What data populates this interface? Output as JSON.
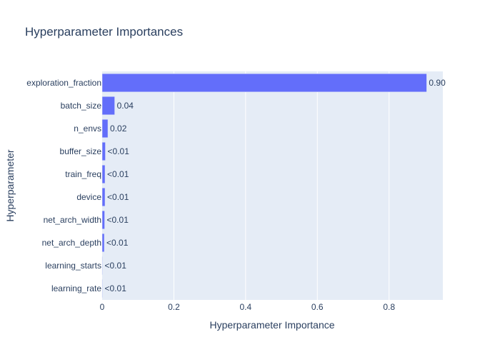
{
  "chart_data": {
    "type": "bar",
    "orientation": "horizontal",
    "title": "Hyperparameter Importances",
    "xlabel": "Hyperparameter Importance",
    "ylabel": "Hyperparameter",
    "xlim": [
      0,
      0.95
    ],
    "xticks": [
      0,
      0.2,
      0.4,
      0.6,
      0.8
    ],
    "xtick_labels": [
      "0",
      "0.2",
      "0.4",
      "0.6",
      "0.8"
    ],
    "grid": true,
    "categories": [
      "exploration_fraction",
      "batch_size",
      "n_envs",
      "buffer_size",
      "train_freq",
      "device",
      "net_arch_width",
      "net_arch_depth",
      "learning_starts",
      "learning_rate"
    ],
    "values": [
      0.905,
      0.035,
      0.016,
      0.009,
      0.008,
      0.008,
      0.007,
      0.006,
      0.001,
      0.001
    ],
    "value_labels": [
      "0.90",
      "0.04",
      "0.02",
      "<0.01",
      "<0.01",
      "<0.01",
      "<0.01",
      "<0.01",
      "<0.01",
      "<0.01"
    ],
    "colors": {
      "bar": "#636efa",
      "plot_bg": "#e5ecf6",
      "text": "#2a3f5f"
    }
  }
}
